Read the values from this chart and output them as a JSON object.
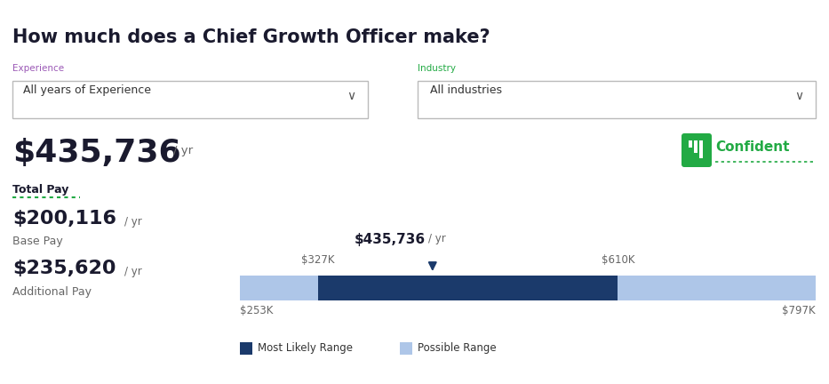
{
  "title": "How much does a Chief Growth Officer make?",
  "title_fontsize": 15,
  "background_color": "#ffffff",
  "experience_label": "Experience",
  "experience_value": "All years of Experience",
  "industry_label": "Industry",
  "industry_value": "All industries",
  "total_pay_label": "Total Pay",
  "total_pay_value": "$435,736",
  "total_pay_unit": "/ yr",
  "base_pay_value": "$200,116",
  "base_pay_unit": "/ yr",
  "base_pay_label": "Base Pay",
  "additional_pay_value": "$235,620",
  "additional_pay_unit": "/ yr",
  "additional_pay_label": "Additional Pay",
  "median_value": "$435,736",
  "median_unit": "/ yr",
  "bar_min": 253,
  "bar_max": 797,
  "most_likely_min": 327,
  "most_likely_max": 610,
  "marker_value": 435,
  "label_327k": "$327K",
  "label_610k": "$610K",
  "label_253k": "$253K",
  "label_797k": "$797K",
  "color_dark_blue": "#1b3a6b",
  "color_light_blue": "#aec6e8",
  "color_green": "#22aa44",
  "color_total_pay_underline": "#22aa44",
  "color_title": "#1a1a2e",
  "color_gray": "#666666",
  "color_dark_text": "#1a1a2e",
  "color_experience_label": "#9b59b6",
  "color_industry_label": "#22aa44",
  "confident_color": "#22aa44",
  "legend_most_likely": "Most Likely Range",
  "legend_possible": "Possible Range",
  "fig_width": 9.33,
  "fig_height": 4.32,
  "dpi": 100
}
